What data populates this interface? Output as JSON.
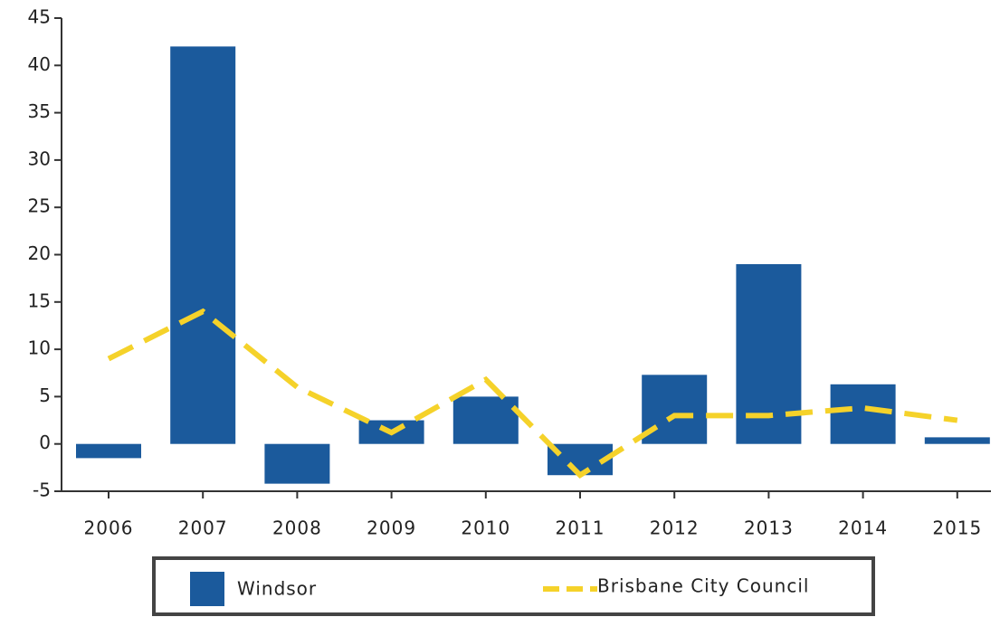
{
  "chart_data": {
    "type": "bar",
    "categories": [
      "2006",
      "2007",
      "2008",
      "2009",
      "2010",
      "2011",
      "2012",
      "2013",
      "2014",
      "2015"
    ],
    "series": [
      {
        "name": "Windsor",
        "color": "#1b5a9c",
        "values": [
          -1.5,
          42,
          -4.2,
          2.5,
          5,
          -3.3,
          7.3,
          19,
          6.3,
          0.7
        ]
      },
      {
        "name": "Brisbane City Council",
        "color": "#f5d22a",
        "type": "line",
        "values": [
          9,
          14,
          6,
          1.2,
          6.8,
          -3.3,
          3,
          3,
          3.8,
          2.5
        ]
      }
    ],
    "ylim": [
      -5,
      45
    ],
    "yticks": [
      -5,
      0,
      5,
      10,
      15,
      20,
      25,
      30,
      35,
      40,
      45
    ],
    "legend": "bottom"
  }
}
